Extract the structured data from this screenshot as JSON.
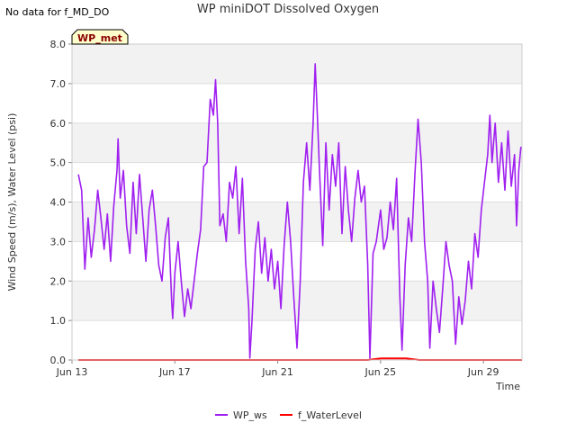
{
  "header": {
    "nodata_text": "No data for f_MD_DO",
    "title": "WP miniDOT Dissolved Oxygen"
  },
  "badge": {
    "label": "WP_met",
    "fill": "#ffffcc",
    "text_color": "#8b0000"
  },
  "chart_data": {
    "type": "line",
    "title": "WP miniDOT Dissolved Oxygen",
    "xlabel": "Time",
    "ylabel": "Wind Speed (m/s), Water Level (psi)",
    "xlim": [
      "2023-06-13",
      "2023-06-30T12:00"
    ],
    "ylim": [
      0,
      8
    ],
    "yticks": [
      0.0,
      1.0,
      2.0,
      3.0,
      4.0,
      5.0,
      6.0,
      7.0,
      8.0
    ],
    "ytick_labels": [
      "0.0",
      "1.0",
      "2.0",
      "3.0",
      "4.0",
      "5.0",
      "6.0",
      "7.0",
      "8.0"
    ],
    "xticks": [
      "2023-06-13",
      "2023-06-17",
      "2023-06-21",
      "2023-06-25",
      "2023-06-29"
    ],
    "xtick_labels": [
      "Jun 13",
      "Jun 17",
      "Jun 21",
      "Jun 25",
      "Jun 29"
    ],
    "grid": true,
    "legend_position": "bottom",
    "series": [
      {
        "name": "WP_ws",
        "color": "#a020f0",
        "points": [
          [
            "2023-06-13T06:00",
            4.7
          ],
          [
            "2023-06-13T09:00",
            4.3
          ],
          [
            "2023-06-13T12:00",
            2.3
          ],
          [
            "2023-06-13T15:00",
            3.6
          ],
          [
            "2023-06-13T18:00",
            2.6
          ],
          [
            "2023-06-13T21:00",
            3.3
          ],
          [
            "2023-06-14T00:00",
            4.3
          ],
          [
            "2023-06-14T03:00",
            3.6
          ],
          [
            "2023-06-14T06:00",
            2.8
          ],
          [
            "2023-06-14T09:00",
            3.7
          ],
          [
            "2023-06-14T12:00",
            2.5
          ],
          [
            "2023-06-14T15:00",
            3.9
          ],
          [
            "2023-06-14T18:00",
            4.8
          ],
          [
            "2023-06-14T19:00",
            5.6
          ],
          [
            "2023-06-14T21:00",
            4.1
          ],
          [
            "2023-06-15T00:00",
            4.8
          ],
          [
            "2023-06-15T03:00",
            3.4
          ],
          [
            "2023-06-15T06:00",
            2.7
          ],
          [
            "2023-06-15T09:00",
            4.5
          ],
          [
            "2023-06-15T12:00",
            3.2
          ],
          [
            "2023-06-15T15:00",
            4.7
          ],
          [
            "2023-06-15T18:00",
            3.6
          ],
          [
            "2023-06-15T21:00",
            2.5
          ],
          [
            "2023-06-16T00:00",
            3.8
          ],
          [
            "2023-06-16T03:00",
            4.3
          ],
          [
            "2023-06-16T06:00",
            3.4
          ],
          [
            "2023-06-16T09:00",
            2.4
          ],
          [
            "2023-06-16T12:00",
            2.0
          ],
          [
            "2023-06-16T15:00",
            3.1
          ],
          [
            "2023-06-16T18:00",
            3.6
          ],
          [
            "2023-06-16T21:00",
            1.5
          ],
          [
            "2023-06-16T22:00",
            1.05
          ],
          [
            "2023-06-17T00:00",
            2.2
          ],
          [
            "2023-06-17T03:00",
            3.0
          ],
          [
            "2023-06-17T06:00",
            2.0
          ],
          [
            "2023-06-17T09:00",
            1.1
          ],
          [
            "2023-06-17T12:00",
            1.8
          ],
          [
            "2023-06-17T15:00",
            1.3
          ],
          [
            "2023-06-17T18:00",
            2.0
          ],
          [
            "2023-06-17T21:00",
            2.7
          ],
          [
            "2023-06-18T00:00",
            3.3
          ],
          [
            "2023-06-18T03:00",
            4.9
          ],
          [
            "2023-06-18T06:00",
            5.0
          ],
          [
            "2023-06-18T09:00",
            6.6
          ],
          [
            "2023-06-18T12:00",
            6.2
          ],
          [
            "2023-06-18T14:00",
            7.1
          ],
          [
            "2023-06-18T16:00",
            6.0
          ],
          [
            "2023-06-18T18:00",
            3.4
          ],
          [
            "2023-06-18T21:00",
            3.7
          ],
          [
            "2023-06-19T00:00",
            3.0
          ],
          [
            "2023-06-19T03:00",
            4.5
          ],
          [
            "2023-06-19T06:00",
            4.1
          ],
          [
            "2023-06-19T09:00",
            4.9
          ],
          [
            "2023-06-19T12:00",
            3.2
          ],
          [
            "2023-06-19T15:00",
            4.6
          ],
          [
            "2023-06-19T18:00",
            2.5
          ],
          [
            "2023-06-19T21:00",
            1.3
          ],
          [
            "2023-06-19T22:00",
            0.05
          ],
          [
            "2023-06-20T00:00",
            1.0
          ],
          [
            "2023-06-20T03:00",
            2.8
          ],
          [
            "2023-06-20T06:00",
            3.5
          ],
          [
            "2023-06-20T09:00",
            2.2
          ],
          [
            "2023-06-20T12:00",
            3.1
          ],
          [
            "2023-06-20T15:00",
            2.0
          ],
          [
            "2023-06-20T18:00",
            2.8
          ],
          [
            "2023-06-20T21:00",
            1.8
          ],
          [
            "2023-06-21T00:00",
            2.5
          ],
          [
            "2023-06-21T03:00",
            1.3
          ],
          [
            "2023-06-21T06:00",
            2.9
          ],
          [
            "2023-06-21T09:00",
            4.0
          ],
          [
            "2023-06-21T12:00",
            3.0
          ],
          [
            "2023-06-21T15:00",
            1.6
          ],
          [
            "2023-06-21T18:00",
            0.3
          ],
          [
            "2023-06-21T21:00",
            2.0
          ],
          [
            "2023-06-22T00:00",
            4.5
          ],
          [
            "2023-06-22T03:00",
            5.5
          ],
          [
            "2023-06-22T06:00",
            4.3
          ],
          [
            "2023-06-22T09:00",
            6.0
          ],
          [
            "2023-06-22T11:00",
            7.5
          ],
          [
            "2023-06-22T13:00",
            6.2
          ],
          [
            "2023-06-22T15:00",
            4.8
          ],
          [
            "2023-06-22T18:00",
            2.9
          ],
          [
            "2023-06-22T21:00",
            5.5
          ],
          [
            "2023-06-23T00:00",
            3.8
          ],
          [
            "2023-06-23T03:00",
            5.2
          ],
          [
            "2023-06-23T06:00",
            4.4
          ],
          [
            "2023-06-23T09:00",
            5.5
          ],
          [
            "2023-06-23T12:00",
            3.2
          ],
          [
            "2023-06-23T15:00",
            4.9
          ],
          [
            "2023-06-23T18:00",
            3.8
          ],
          [
            "2023-06-23T21:00",
            3.0
          ],
          [
            "2023-06-24T00:00",
            4.1
          ],
          [
            "2023-06-24T03:00",
            4.8
          ],
          [
            "2023-06-24T06:00",
            4.0
          ],
          [
            "2023-06-24T09:00",
            4.4
          ],
          [
            "2023-06-24T12:00",
            2.4
          ],
          [
            "2023-06-24T14:00",
            0.05
          ],
          [
            "2023-06-24T17:00",
            2.7
          ],
          [
            "2023-06-24T20:00",
            3.0
          ],
          [
            "2023-06-25T00:00",
            3.8
          ],
          [
            "2023-06-25T03:00",
            2.8
          ],
          [
            "2023-06-25T06:00",
            3.1
          ],
          [
            "2023-06-25T09:00",
            4.0
          ],
          [
            "2023-06-25T12:00",
            3.3
          ],
          [
            "2023-06-25T15:00",
            4.6
          ],
          [
            "2023-06-25T18:00",
            1.6
          ],
          [
            "2023-06-25T20:00",
            0.25
          ],
          [
            "2023-06-25T23:00",
            2.4
          ],
          [
            "2023-06-26T02:00",
            3.6
          ],
          [
            "2023-06-26T05:00",
            3.0
          ],
          [
            "2023-06-26T08:00",
            4.7
          ],
          [
            "2023-06-26T11:00",
            6.1
          ],
          [
            "2023-06-26T14:00",
            5.0
          ],
          [
            "2023-06-26T17:00",
            3.0
          ],
          [
            "2023-06-26T20:00",
            2.0
          ],
          [
            "2023-06-26T22:00",
            0.3
          ],
          [
            "2023-06-27T01:00",
            2.0
          ],
          [
            "2023-06-27T04:00",
            1.3
          ],
          [
            "2023-06-27T07:00",
            0.7
          ],
          [
            "2023-06-27T10:00",
            1.8
          ],
          [
            "2023-06-27T13:00",
            3.0
          ],
          [
            "2023-06-27T16:00",
            2.4
          ],
          [
            "2023-06-27T19:00",
            2.0
          ],
          [
            "2023-06-27T22:00",
            0.4
          ],
          [
            "2023-06-28T01:00",
            1.6
          ],
          [
            "2023-06-28T04:00",
            0.9
          ],
          [
            "2023-06-28T07:00",
            1.5
          ],
          [
            "2023-06-28T10:00",
            2.5
          ],
          [
            "2023-06-28T13:00",
            1.8
          ],
          [
            "2023-06-28T16:00",
            3.2
          ],
          [
            "2023-06-28T19:00",
            2.6
          ],
          [
            "2023-06-28T22:00",
            3.8
          ],
          [
            "2023-06-29T01:00",
            4.5
          ],
          [
            "2023-06-29T04:00",
            5.2
          ],
          [
            "2023-06-29T06:00",
            6.2
          ],
          [
            "2023-06-29T08:00",
            5.0
          ],
          [
            "2023-06-29T11:00",
            6.0
          ],
          [
            "2023-06-29T14:00",
            4.5
          ],
          [
            "2023-06-29T17:00",
            5.5
          ],
          [
            "2023-06-29T20:00",
            4.3
          ],
          [
            "2023-06-29T23:00",
            5.8
          ],
          [
            "2023-06-30T02:00",
            4.4
          ],
          [
            "2023-06-30T05:00",
            5.2
          ],
          [
            "2023-06-30T07:00",
            3.4
          ],
          [
            "2023-06-30T09:00",
            4.8
          ],
          [
            "2023-06-30T11:00",
            5.4
          ]
        ]
      },
      {
        "name": "f_WaterLevel",
        "color": "#ff0000",
        "points": [
          [
            "2023-06-13T06:00",
            0.0
          ],
          [
            "2023-06-24T12:00",
            0.0
          ],
          [
            "2023-06-24T18:00",
            0.02
          ],
          [
            "2023-06-25T00:00",
            0.04
          ],
          [
            "2023-06-26T00:00",
            0.04
          ],
          [
            "2023-06-26T06:00",
            0.02
          ],
          [
            "2023-06-26T12:00",
            0.0
          ],
          [
            "2023-06-30T12:00",
            0.0
          ]
        ]
      }
    ]
  }
}
